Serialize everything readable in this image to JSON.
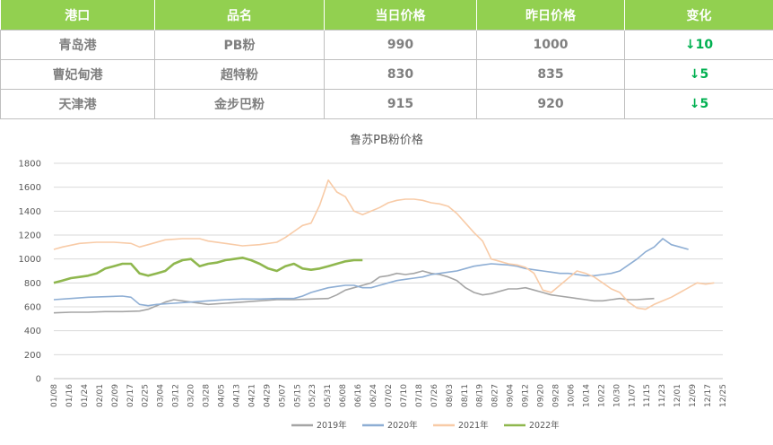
{
  "table": {
    "headers": [
      "港口",
      "品名",
      "当日价格",
      "昨日价格",
      "变化"
    ],
    "rows": [
      {
        "port": "青岛港",
        "product": "PB粉",
        "today": "990",
        "yesterday": "1000",
        "change": "↓10"
      },
      {
        "port": "曹妃甸港",
        "product": "超特粉",
        "today": "830",
        "yesterday": "835",
        "change": "↓5"
      },
      {
        "port": "天津港",
        "product": "金步巴粉",
        "today": "915",
        "yesterday": "920",
        "change": "↓5"
      }
    ]
  },
  "chart_data": {
    "type": "line",
    "title": "鲁苏PB粉价格",
    "ylim": [
      0,
      1800
    ],
    "yticks": [
      0,
      200,
      400,
      600,
      800,
      1000,
      1200,
      1400,
      1600,
      1800
    ],
    "x_ticks": [
      "01/08",
      "01/16",
      "01/24",
      "02/01",
      "02/09",
      "02/17",
      "02/25",
      "03/04",
      "03/12",
      "03/20",
      "03/28",
      "04/05",
      "04/13",
      "04/21",
      "04/29",
      "05/07",
      "05/15",
      "05/23",
      "05/31",
      "06/08",
      "06/16",
      "06/24",
      "07/02",
      "07/10",
      "07/18",
      "07/26",
      "08/03",
      "08/11",
      "08/19",
      "08/27",
      "09/04",
      "09/12",
      "09/20",
      "09/28",
      "10/06",
      "10/14",
      "10/22",
      "10/30",
      "11/07",
      "11/15",
      "11/23",
      "12/01",
      "12/09",
      "12/17",
      "12/25"
    ],
    "grid": true,
    "legend": "bottom",
    "series": [
      {
        "name": "2019年",
        "color": "#a5a5a5",
        "points": [
          [
            0,
            550
          ],
          [
            2,
            555
          ],
          [
            4,
            555
          ],
          [
            6,
            560
          ],
          [
            8,
            560
          ],
          [
            10,
            565
          ],
          [
            11,
            580
          ],
          [
            12,
            610
          ],
          [
            13,
            640
          ],
          [
            14,
            660
          ],
          [
            16,
            640
          ],
          [
            18,
            620
          ],
          [
            20,
            630
          ],
          [
            22,
            640
          ],
          [
            24,
            650
          ],
          [
            26,
            660
          ],
          [
            28,
            660
          ],
          [
            30,
            665
          ],
          [
            32,
            670
          ],
          [
            33,
            700
          ],
          [
            34,
            740
          ],
          [
            35,
            760
          ],
          [
            36,
            780
          ],
          [
            37,
            800
          ],
          [
            38,
            850
          ],
          [
            39,
            860
          ],
          [
            40,
            880
          ],
          [
            41,
            870
          ],
          [
            42,
            880
          ],
          [
            43,
            900
          ],
          [
            44,
            880
          ],
          [
            45,
            870
          ],
          [
            46,
            850
          ],
          [
            47,
            820
          ],
          [
            48,
            760
          ],
          [
            49,
            720
          ],
          [
            50,
            700
          ],
          [
            51,
            710
          ],
          [
            52,
            730
          ],
          [
            53,
            750
          ],
          [
            54,
            750
          ],
          [
            55,
            760
          ],
          [
            56,
            740
          ],
          [
            57,
            720
          ],
          [
            58,
            700
          ],
          [
            59,
            690
          ],
          [
            60,
            680
          ],
          [
            61,
            670
          ],
          [
            62,
            660
          ],
          [
            63,
            650
          ],
          [
            64,
            650
          ],
          [
            65,
            660
          ],
          [
            66,
            670
          ],
          [
            67,
            660
          ],
          [
            68,
            660
          ],
          [
            69,
            665
          ],
          [
            70,
            670
          ]
        ]
      },
      {
        "name": "2020年",
        "color": "#8eaed4",
        "points": [
          [
            0,
            660
          ],
          [
            2,
            670
          ],
          [
            4,
            680
          ],
          [
            6,
            685
          ],
          [
            8,
            690
          ],
          [
            9,
            680
          ],
          [
            10,
            620
          ],
          [
            11,
            610
          ],
          [
            12,
            620
          ],
          [
            14,
            630
          ],
          [
            16,
            640
          ],
          [
            18,
            650
          ],
          [
            20,
            660
          ],
          [
            22,
            665
          ],
          [
            24,
            665
          ],
          [
            26,
            670
          ],
          [
            28,
            670
          ],
          [
            29,
            690
          ],
          [
            30,
            720
          ],
          [
            31,
            740
          ],
          [
            32,
            760
          ],
          [
            33,
            770
          ],
          [
            34,
            780
          ],
          [
            35,
            780
          ],
          [
            36,
            760
          ],
          [
            37,
            760
          ],
          [
            38,
            780
          ],
          [
            39,
            800
          ],
          [
            40,
            820
          ],
          [
            41,
            830
          ],
          [
            42,
            840
          ],
          [
            43,
            850
          ],
          [
            44,
            870
          ],
          [
            45,
            880
          ],
          [
            46,
            890
          ],
          [
            47,
            900
          ],
          [
            48,
            920
          ],
          [
            49,
            940
          ],
          [
            50,
            950
          ],
          [
            51,
            960
          ],
          [
            52,
            955
          ],
          [
            53,
            950
          ],
          [
            54,
            940
          ],
          [
            55,
            920
          ],
          [
            56,
            910
          ],
          [
            57,
            900
          ],
          [
            58,
            890
          ],
          [
            59,
            880
          ],
          [
            60,
            880
          ],
          [
            61,
            870
          ],
          [
            62,
            860
          ],
          [
            63,
            860
          ],
          [
            64,
            870
          ],
          [
            65,
            880
          ],
          [
            66,
            900
          ],
          [
            67,
            950
          ],
          [
            68,
            1000
          ],
          [
            69,
            1060
          ],
          [
            70,
            1100
          ],
          [
            71,
            1170
          ],
          [
            72,
            1120
          ],
          [
            73,
            1100
          ],
          [
            74,
            1080
          ]
        ]
      },
      {
        "name": "2021年",
        "color": "#f8cba7",
        "points": [
          [
            0,
            1080
          ],
          [
            1,
            1100
          ],
          [
            3,
            1130
          ],
          [
            5,
            1140
          ],
          [
            7,
            1140
          ],
          [
            9,
            1130
          ],
          [
            10,
            1100
          ],
          [
            11,
            1120
          ],
          [
            13,
            1160
          ],
          [
            15,
            1170
          ],
          [
            17,
            1170
          ],
          [
            18,
            1150
          ],
          [
            20,
            1130
          ],
          [
            22,
            1110
          ],
          [
            24,
            1120
          ],
          [
            26,
            1140
          ],
          [
            27,
            1180
          ],
          [
            28,
            1230
          ],
          [
            29,
            1280
          ],
          [
            30,
            1300
          ],
          [
            31,
            1450
          ],
          [
            32,
            1660
          ],
          [
            33,
            1560
          ],
          [
            34,
            1520
          ],
          [
            35,
            1400
          ],
          [
            36,
            1370
          ],
          [
            37,
            1400
          ],
          [
            38,
            1430
          ],
          [
            39,
            1470
          ],
          [
            40,
            1490
          ],
          [
            41,
            1500
          ],
          [
            42,
            1500
          ],
          [
            43,
            1490
          ],
          [
            44,
            1470
          ],
          [
            45,
            1460
          ],
          [
            46,
            1440
          ],
          [
            47,
            1380
          ],
          [
            48,
            1300
          ],
          [
            49,
            1220
          ],
          [
            50,
            1150
          ],
          [
            51,
            1000
          ],
          [
            52,
            980
          ],
          [
            53,
            960
          ],
          [
            54,
            950
          ],
          [
            55,
            930
          ],
          [
            56,
            880
          ],
          [
            57,
            740
          ],
          [
            58,
            720
          ],
          [
            59,
            780
          ],
          [
            60,
            840
          ],
          [
            61,
            900
          ],
          [
            62,
            880
          ],
          [
            63,
            850
          ],
          [
            64,
            800
          ],
          [
            65,
            750
          ],
          [
            66,
            720
          ],
          [
            67,
            640
          ],
          [
            68,
            590
          ],
          [
            69,
            580
          ],
          [
            70,
            620
          ],
          [
            71,
            650
          ],
          [
            72,
            680
          ],
          [
            73,
            720
          ],
          [
            74,
            760
          ],
          [
            75,
            800
          ],
          [
            76,
            790
          ],
          [
            77,
            800
          ]
        ]
      },
      {
        "name": "2022年",
        "color": "#8fb74e",
        "points": [
          [
            0,
            800
          ],
          [
            1,
            820
          ],
          [
            2,
            840
          ],
          [
            3,
            850
          ],
          [
            4,
            860
          ],
          [
            5,
            880
          ],
          [
            6,
            920
          ],
          [
            7,
            940
          ],
          [
            8,
            960
          ],
          [
            9,
            960
          ],
          [
            10,
            880
          ],
          [
            11,
            860
          ],
          [
            12,
            880
          ],
          [
            13,
            900
          ],
          [
            14,
            960
          ],
          [
            15,
            990
          ],
          [
            16,
            1000
          ],
          [
            17,
            940
          ],
          [
            18,
            960
          ],
          [
            19,
            970
          ],
          [
            20,
            990
          ],
          [
            21,
            1000
          ],
          [
            22,
            1010
          ],
          [
            23,
            990
          ],
          [
            24,
            960
          ],
          [
            25,
            920
          ],
          [
            26,
            900
          ],
          [
            27,
            940
          ],
          [
            28,
            960
          ],
          [
            29,
            920
          ],
          [
            30,
            910
          ],
          [
            31,
            920
          ],
          [
            32,
            940
          ],
          [
            33,
            960
          ],
          [
            34,
            980
          ],
          [
            35,
            990
          ],
          [
            36,
            990
          ]
        ]
      }
    ]
  }
}
